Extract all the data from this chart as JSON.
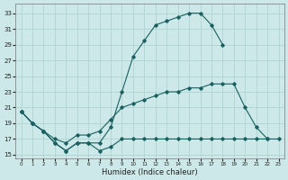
{
  "xlabel": "Humidex (Indice chaleur)",
  "xlim": [
    -0.5,
    23.5
  ],
  "ylim": [
    14.5,
    34.2
  ],
  "yticks": [
    15,
    17,
    19,
    21,
    23,
    25,
    27,
    29,
    31,
    33
  ],
  "xticks": [
    0,
    1,
    2,
    3,
    4,
    5,
    6,
    7,
    8,
    9,
    10,
    11,
    12,
    13,
    14,
    15,
    16,
    17,
    18,
    19,
    20,
    21,
    22,
    23
  ],
  "bg_color": "#cce8e8",
  "grid_color": "#aacfcf",
  "line_color": "#1a6060",
  "line1_x": [
    0,
    1,
    2,
    3,
    4,
    5,
    6,
    7,
    8,
    9,
    10,
    11,
    12,
    13,
    14,
    15,
    16,
    17,
    18
  ],
  "line1_y": [
    20.5,
    19.0,
    18.0,
    16.5,
    15.5,
    16.5,
    16.5,
    16.5,
    18.5,
    23.0,
    27.5,
    29.5,
    31.5,
    32.0,
    32.5,
    33.0,
    33.0,
    31.5,
    29.0
  ],
  "line2_x": [
    0,
    1,
    2,
    3,
    4,
    5,
    6,
    7,
    8,
    9,
    10,
    11,
    12,
    13,
    14,
    15,
    16,
    17,
    18,
    19,
    20,
    21,
    22
  ],
  "line2_y": [
    20.5,
    19.0,
    18.0,
    17.0,
    16.5,
    17.5,
    17.5,
    18.0,
    19.5,
    21.0,
    21.5,
    22.0,
    22.5,
    23.0,
    23.0,
    23.5,
    23.5,
    24.0,
    24.0,
    24.0,
    21.0,
    18.5,
    17.0
  ],
  "line3_x": [
    0,
    1,
    2,
    3,
    4,
    5,
    6,
    7,
    8,
    9,
    10,
    11,
    12,
    13,
    14,
    15,
    16,
    17,
    18,
    19,
    20,
    21,
    22,
    23
  ],
  "line3_y": [
    20.5,
    19.0,
    18.0,
    16.5,
    15.5,
    16.5,
    16.5,
    15.5,
    16.0,
    17.0,
    17.0,
    17.0,
    17.0,
    17.0,
    17.0,
    17.0,
    17.0,
    17.0,
    17.0,
    17.0,
    17.0,
    17.0,
    17.0,
    17.0
  ]
}
